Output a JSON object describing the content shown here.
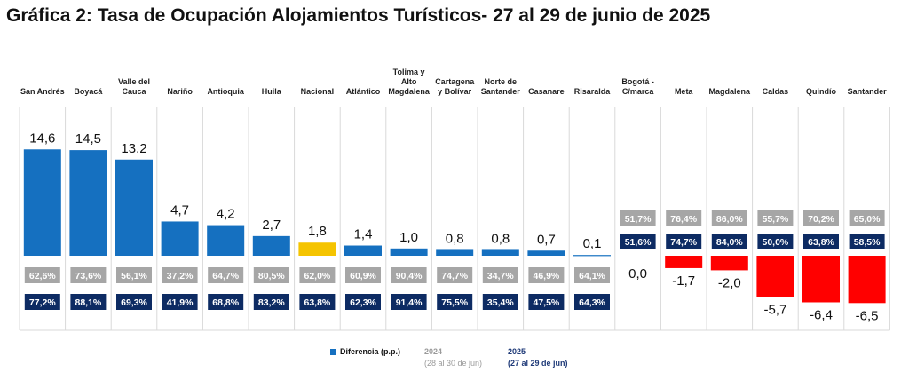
{
  "chart_data": {
    "type": "bar",
    "title": "Gráfica 2: Tasa de Ocupación Alojamientos Turísticos- 27 al 29 de junio de 2025",
    "categories": [
      "San Andrés",
      "Boyacá",
      "Valle del Cauca",
      "Nariño",
      "Antioquia",
      "Huila",
      "Nacional",
      "Atlántico",
      "Tolima y Alto Magdalena",
      "Cartagena y Bolívar",
      "Norte de Santander",
      "Casanare",
      "Risaralda",
      "Bogotá - C/marca",
      "Meta",
      "Magdalena",
      "Caldas",
      "Quindío",
      "Santander"
    ],
    "category_lines": [
      [
        "San Andrés"
      ],
      [
        "Boyacá"
      ],
      [
        "Valle del",
        "Cauca"
      ],
      [
        "Nariño"
      ],
      [
        "Antioquia"
      ],
      [
        "Huila"
      ],
      [
        "Nacional"
      ],
      [
        "Atlántico"
      ],
      [
        "Tolima y",
        "Alto",
        "Magdalena"
      ],
      [
        "Cartagena",
        "y Bolívar"
      ],
      [
        "Norte de",
        "Santander"
      ],
      [
        "Casanare"
      ],
      [
        "Risaralda"
      ],
      [
        "Bogotá -",
        "C/marca"
      ],
      [
        "Meta"
      ],
      [
        "Magdalena"
      ],
      [
        "Caldas"
      ],
      [
        "Quindío"
      ],
      [
        "Santander"
      ]
    ],
    "series": [
      {
        "name": "Diferencia (p.p.)",
        "values": [
          14.6,
          14.5,
          13.2,
          4.7,
          4.2,
          2.7,
          1.8,
          1.4,
          1.0,
          0.8,
          0.8,
          0.7,
          0.1,
          0.0,
          -1.7,
          -2.0,
          -5.7,
          -6.4,
          -6.5
        ],
        "labels": [
          "14,6",
          "14,5",
          "13,2",
          "4,7",
          "4,2",
          "2,7",
          "1,8",
          "1,4",
          "1,0",
          "0,8",
          "0,8",
          "0,7",
          "0,1",
          "0,0",
          "-1,7",
          "-2,0",
          "-5,7",
          "-6,4",
          "-6,5"
        ]
      },
      {
        "name": "2024",
        "labels": [
          "62,6%",
          "73,6%",
          "56,1%",
          "37,2%",
          "64,7%",
          "80,5%",
          "62,0%",
          "60,9%",
          "90,4%",
          "74,7%",
          "34,7%",
          "46,9%",
          "64,1%",
          "51,7%",
          "76,4%",
          "86,0%",
          "55,7%",
          "70,2%",
          "65,0%"
        ]
      },
      {
        "name": "2025",
        "labels": [
          "77,2%",
          "88,1%",
          "69,3%",
          "41,9%",
          "68,8%",
          "83,2%",
          "63,8%",
          "62,3%",
          "91,4%",
          "75,5%",
          "35,4%",
          "47,5%",
          "64,3%",
          "51,6%",
          "74,7%",
          "84,0%",
          "50,0%",
          "63,8%",
          "58,5%"
        ]
      }
    ],
    "highlight_category": "Nacional",
    "colors": {
      "positive": "#1570c0",
      "negative": "#ff0000",
      "national": "#f5c400",
      "badge_2024": "#a6a6a6",
      "badge_2025": "#0d2b63",
      "grid": "#d9d9d9"
    },
    "legend": {
      "series_label": "Diferencia (p.p.)",
      "label_2024": "2024",
      "sub_2024": "(28 al 30 de jun)",
      "label_2025": "2025",
      "sub_2025": "(27 al 29 de jun)"
    }
  }
}
